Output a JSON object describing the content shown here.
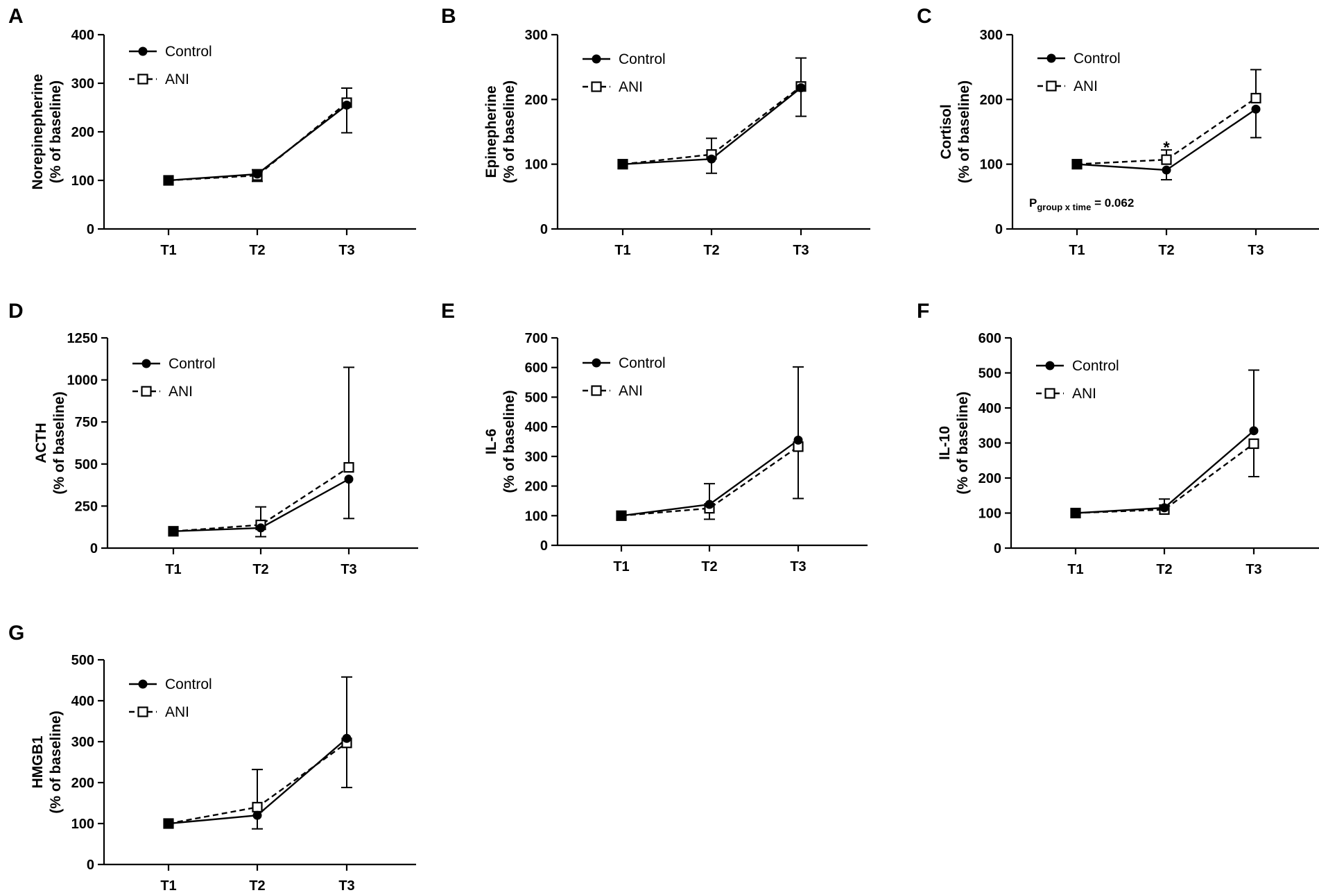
{
  "figure": {
    "legend": {
      "control_label": "Control",
      "ani_label": "ANI"
    },
    "colors": {
      "line": "#000000",
      "background": "#ffffff"
    }
  },
  "chart_data": [
    {
      "id": "A",
      "panel_label": "A",
      "type": "line",
      "ylabel_line1": "Norepinepherine",
      "ylabel_line2": "(% of baseline)",
      "categories": [
        "T1",
        "T2",
        "T3"
      ],
      "ylim": [
        0,
        400
      ],
      "yticks": [
        0,
        100,
        200,
        300,
        400
      ],
      "ytick_labels": [
        "0",
        "100",
        "200",
        "300",
        "400"
      ],
      "series": [
        {
          "name": "Control",
          "values": [
            100,
            113,
            255
          ],
          "err_low": [
            null,
            null,
            198
          ],
          "err_high": [
            null,
            null,
            null
          ]
        },
        {
          "name": "ANI",
          "values": [
            100,
            110,
            260
          ],
          "err_low": [
            null,
            98,
            null
          ],
          "err_high": [
            null,
            122,
            290
          ]
        }
      ],
      "annotations": []
    },
    {
      "id": "B",
      "panel_label": "B",
      "type": "line",
      "ylabel_line1": "Epinepherine",
      "ylabel_line2": "(% of baseline)",
      "categories": [
        "T1",
        "T2",
        "T3"
      ],
      "ylim": [
        0,
        300
      ],
      "yticks": [
        0,
        100,
        200,
        300
      ],
      "ytick_labels": [
        "0",
        "100",
        "200",
        "300"
      ],
      "series": [
        {
          "name": "Control",
          "values": [
            100,
            108,
            218
          ],
          "err_low": [
            null,
            86,
            174
          ],
          "err_high": [
            null,
            null,
            null
          ]
        },
        {
          "name": "ANI",
          "values": [
            100,
            115,
            220
          ],
          "err_low": [
            null,
            null,
            null
          ],
          "err_high": [
            null,
            140,
            264
          ]
        }
      ],
      "annotations": []
    },
    {
      "id": "C",
      "panel_label": "C",
      "type": "line",
      "ylabel_line1": "Cortisol",
      "ylabel_line2": "(% of baseline)",
      "categories": [
        "T1",
        "T2",
        "T3"
      ],
      "ylim": [
        0,
        300
      ],
      "yticks": [
        0,
        100,
        200,
        300
      ],
      "ytick_labels": [
        "0",
        "100",
        "200",
        "300"
      ],
      "series": [
        {
          "name": "Control",
          "values": [
            100,
            91,
            185
          ],
          "err_low": [
            null,
            76,
            141
          ],
          "err_high": [
            null,
            null,
            null
          ]
        },
        {
          "name": "ANI",
          "values": [
            100,
            107,
            202
          ],
          "err_low": [
            null,
            null,
            null
          ],
          "err_high": [
            null,
            122,
            246
          ]
        }
      ],
      "annotations": [
        {
          "kind": "star",
          "text": "*",
          "category": "T2",
          "y": 128
        },
        {
          "kind": "p",
          "p_main": "P",
          "p_sub": "group x time",
          "p_value": " = 0.062"
        }
      ]
    },
    {
      "id": "D",
      "panel_label": "D",
      "type": "line",
      "ylabel_line1": "ACTH",
      "ylabel_line2": "(% of baseline)",
      "categories": [
        "T1",
        "T2",
        "T3"
      ],
      "ylim": [
        0,
        1250
      ],
      "yticks": [
        0,
        250,
        500,
        750,
        1000,
        1250
      ],
      "ytick_labels": [
        "0",
        "250",
        "500",
        "750",
        "1000",
        "1250"
      ],
      "series": [
        {
          "name": "Control",
          "values": [
            100,
            120,
            410
          ],
          "err_low": [
            null,
            68,
            176
          ],
          "err_high": [
            null,
            null,
            null
          ]
        },
        {
          "name": "ANI",
          "values": [
            100,
            138,
            480
          ],
          "err_low": [
            null,
            null,
            null
          ],
          "err_high": [
            null,
            245,
            1075
          ]
        }
      ],
      "annotations": []
    },
    {
      "id": "E",
      "panel_label": "E",
      "type": "line",
      "ylabel_line1": "IL-6",
      "ylabel_line2": "(% of baseline)",
      "categories": [
        "T1",
        "T2",
        "T3"
      ],
      "ylim": [
        0,
        700
      ],
      "yticks": [
        0,
        100,
        200,
        300,
        400,
        500,
        600,
        700
      ],
      "ytick_labels": [
        "0",
        "100",
        "200",
        "300",
        "400",
        "500",
        "600",
        "700"
      ],
      "series": [
        {
          "name": "Control",
          "values": [
            100,
            138,
            355
          ],
          "err_low": [
            null,
            null,
            null
          ],
          "err_high": [
            null,
            208,
            602
          ]
        },
        {
          "name": "ANI",
          "values": [
            100,
            125,
            333
          ],
          "err_low": [
            null,
            88,
            158
          ],
          "err_high": [
            null,
            null,
            null
          ]
        }
      ],
      "annotations": []
    },
    {
      "id": "F",
      "panel_label": "F",
      "type": "line",
      "ylabel_line1": "IL-10",
      "ylabel_line2": "(% of baseline)",
      "categories": [
        "T1",
        "T2",
        "T3"
      ],
      "ylim": [
        0,
        600
      ],
      "yticks": [
        0,
        100,
        200,
        300,
        400,
        500,
        600
      ],
      "ytick_labels": [
        "0",
        "100",
        "200",
        "300",
        "400",
        "500",
        "600"
      ],
      "series": [
        {
          "name": "Control",
          "values": [
            100,
            115,
            335
          ],
          "err_low": [
            null,
            null,
            null
          ],
          "err_high": [
            null,
            140,
            508
          ]
        },
        {
          "name": "ANI",
          "values": [
            100,
            110,
            298
          ],
          "err_low": [
            null,
            null,
            204
          ],
          "err_high": [
            null,
            null,
            null
          ]
        }
      ],
      "annotations": []
    },
    {
      "id": "G",
      "panel_label": "G",
      "type": "line",
      "ylabel_line1": "HMGB1",
      "ylabel_line2": "(% of baseline)",
      "categories": [
        "T1",
        "T2",
        "T3"
      ],
      "ylim": [
        0,
        500
      ],
      "yticks": [
        0,
        100,
        200,
        300,
        400,
        500
      ],
      "ytick_labels": [
        "0",
        "100",
        "200",
        "300",
        "400",
        "500"
      ],
      "series": [
        {
          "name": "Control",
          "values": [
            100,
            120,
            308
          ],
          "err_low": [
            null,
            87,
            188
          ],
          "err_high": [
            null,
            null,
            null
          ]
        },
        {
          "name": "ANI",
          "values": [
            100,
            140,
            297
          ],
          "err_low": [
            null,
            null,
            null
          ],
          "err_high": [
            null,
            232,
            458
          ]
        }
      ],
      "annotations": []
    }
  ]
}
